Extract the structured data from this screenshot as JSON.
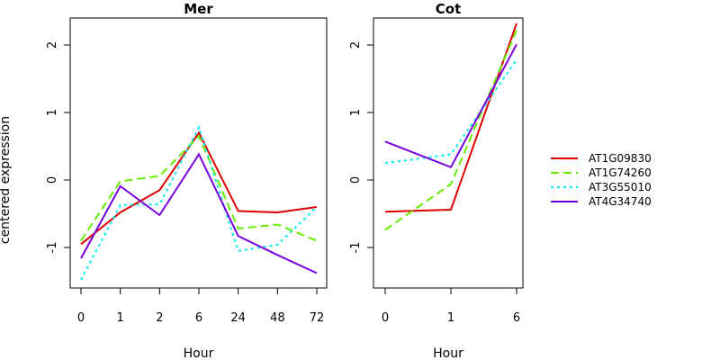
{
  "chart_data": [
    {
      "type": "line",
      "title": "Mer",
      "xlabel": "Hour",
      "ylabel": "centered expression",
      "categories": [
        "0",
        "1",
        "2",
        "6",
        "24",
        "48",
        "72"
      ],
      "ylim": [
        -1.6,
        2.4
      ],
      "yticks": [
        -1,
        0,
        1,
        2
      ],
      "series": [
        {
          "name": "AT1G09830",
          "values": [
            -0.95,
            -0.48,
            -0.15,
            0.7,
            -0.46,
            -0.48,
            -0.4
          ]
        },
        {
          "name": "AT1G74260",
          "values": [
            -0.9,
            -0.02,
            0.06,
            0.65,
            -0.72,
            -0.66,
            -0.9
          ]
        },
        {
          "name": "AT3G55010",
          "values": [
            -1.48,
            -0.37,
            -0.36,
            0.78,
            -1.05,
            -0.96,
            -0.4
          ]
        },
        {
          "name": "AT4G34740",
          "values": [
            -1.16,
            -0.09,
            -0.52,
            0.38,
            -0.83,
            -1.11,
            -1.38
          ]
        }
      ]
    },
    {
      "type": "line",
      "title": "Cot",
      "xlabel": "Hour",
      "ylabel": "",
      "categories": [
        "0",
        "1",
        "6"
      ],
      "ylim": [
        -1.6,
        2.4
      ],
      "yticks": [
        -1,
        0,
        1,
        2
      ],
      "series": [
        {
          "name": "AT1G09830",
          "values": [
            -0.47,
            -0.44,
            2.32
          ]
        },
        {
          "name": "AT1G74260",
          "values": [
            -0.74,
            -0.06,
            2.22
          ]
        },
        {
          "name": "AT3G55010",
          "values": [
            0.25,
            0.38,
            1.78
          ]
        },
        {
          "name": "AT4G34740",
          "values": [
            0.57,
            0.19,
            2.01
          ]
        }
      ]
    }
  ],
  "legend": {
    "position": "right",
    "entries": [
      {
        "name": "AT1G09830",
        "color": "#dd0000",
        "dash": "solid"
      },
      {
        "name": "AT1G74260",
        "color": "#66ee00",
        "dash": "dashed"
      },
      {
        "name": "AT3G55010",
        "color": "#00eeee",
        "dash": "dotted"
      },
      {
        "name": "AT4G34740",
        "color": "#7700dd",
        "dash": "solid"
      }
    ]
  }
}
